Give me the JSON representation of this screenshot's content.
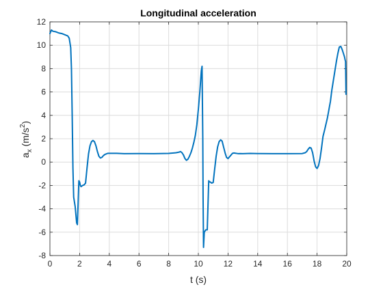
{
  "chart_data": {
    "type": "line",
    "title": "Longitudinal acceleration",
    "xlabel": "t (s)",
    "ylabel_base": "a",
    "ylabel_sub": "x",
    "ylabel_units_open": " (m/s",
    "ylabel_units_sup": "2",
    "ylabel_units_close": ")",
    "xlim": [
      0,
      20
    ],
    "ylim": [
      -8,
      12
    ],
    "xticks": [
      0,
      2,
      4,
      6,
      8,
      10,
      12,
      14,
      16,
      18,
      20
    ],
    "yticks": [
      -8,
      -6,
      -4,
      -2,
      0,
      2,
      4,
      6,
      8,
      10,
      12
    ],
    "grid": true,
    "line_color": "#0072BD",
    "series": [
      {
        "x": [
          0,
          0.1,
          0.2,
          0.4,
          0.6,
          0.8,
          1.0,
          1.2,
          1.3,
          1.4,
          1.45,
          1.5,
          1.55,
          1.6,
          1.7,
          1.8,
          1.85,
          1.9,
          1.95,
          2.0,
          2.05,
          2.1,
          2.2,
          2.3,
          2.4,
          2.5,
          2.6,
          2.7,
          2.8,
          2.9,
          3.0,
          3.1,
          3.2,
          3.3,
          3.4,
          3.5,
          3.6,
          3.7,
          3.8,
          3.9,
          4.0,
          4.5,
          5.0,
          6.0,
          7.0,
          8.0,
          8.5,
          8.7,
          8.8,
          8.9,
          9.0,
          9.1,
          9.2,
          9.3,
          9.4,
          9.5,
          9.6,
          9.7,
          9.8,
          9.9,
          10.0,
          10.1,
          10.2,
          10.25,
          10.3,
          10.32,
          10.35,
          10.4,
          10.5,
          10.6,
          10.7,
          10.75,
          10.8,
          10.85,
          10.9,
          11.0,
          11.1,
          11.2,
          11.3,
          11.4,
          11.5,
          11.6,
          11.7,
          11.8,
          11.9,
          12.0,
          12.1,
          12.2,
          12.3,
          12.4,
          12.5,
          12.6,
          12.7,
          12.8,
          13.0,
          13.5,
          14.0,
          15.0,
          16.0,
          17.0,
          17.2,
          17.3,
          17.4,
          17.5,
          17.6,
          17.7,
          17.8,
          17.9,
          18.0,
          18.1,
          18.2,
          18.3,
          18.4,
          18.5,
          18.7,
          18.9,
          19.0,
          19.1,
          19.2,
          19.3,
          19.4,
          19.5,
          19.6,
          19.7,
          19.8,
          19.85,
          19.88,
          19.92,
          19.95
        ],
        "y": [
          11.0,
          11.3,
          11.2,
          11.15,
          11.05,
          11.0,
          10.9,
          10.8,
          10.6,
          9.8,
          8.0,
          4.0,
          -0.5,
          -3.0,
          -3.8,
          -5.2,
          -5.35,
          -3.5,
          -1.6,
          -1.7,
          -2.0,
          -2.1,
          -2.0,
          -1.95,
          -1.8,
          -0.5,
          0.7,
          1.4,
          1.75,
          1.85,
          1.75,
          1.4,
          0.9,
          0.5,
          0.35,
          0.4,
          0.55,
          0.65,
          0.7,
          0.75,
          0.75,
          0.75,
          0.72,
          0.73,
          0.72,
          0.74,
          0.8,
          0.85,
          0.9,
          0.8,
          0.6,
          0.3,
          0.15,
          0.25,
          0.5,
          0.8,
          1.2,
          1.7,
          2.3,
          3.2,
          4.5,
          6.0,
          7.8,
          8.2,
          2.0,
          -3.0,
          -7.3,
          -6.0,
          -5.8,
          -5.8,
          -1.6,
          -1.7,
          -1.7,
          -1.75,
          -1.8,
          -1.75,
          -0.6,
          0.5,
          1.3,
          1.75,
          1.9,
          1.8,
          1.3,
          0.8,
          0.4,
          0.3,
          0.45,
          0.6,
          0.75,
          0.78,
          0.76,
          0.74,
          0.72,
          0.73,
          0.72,
          0.74,
          0.73,
          0.72,
          0.72,
          0.73,
          0.8,
          0.9,
          1.1,
          1.25,
          1.2,
          0.8,
          0.1,
          -0.4,
          -0.55,
          -0.3,
          0.3,
          1.2,
          2.2,
          2.7,
          3.8,
          5.2,
          6.2,
          7.0,
          7.8,
          8.6,
          9.3,
          9.85,
          9.9,
          9.6,
          9.2,
          9.0,
          8.8,
          8.6,
          5.8
        ]
      }
    ]
  }
}
